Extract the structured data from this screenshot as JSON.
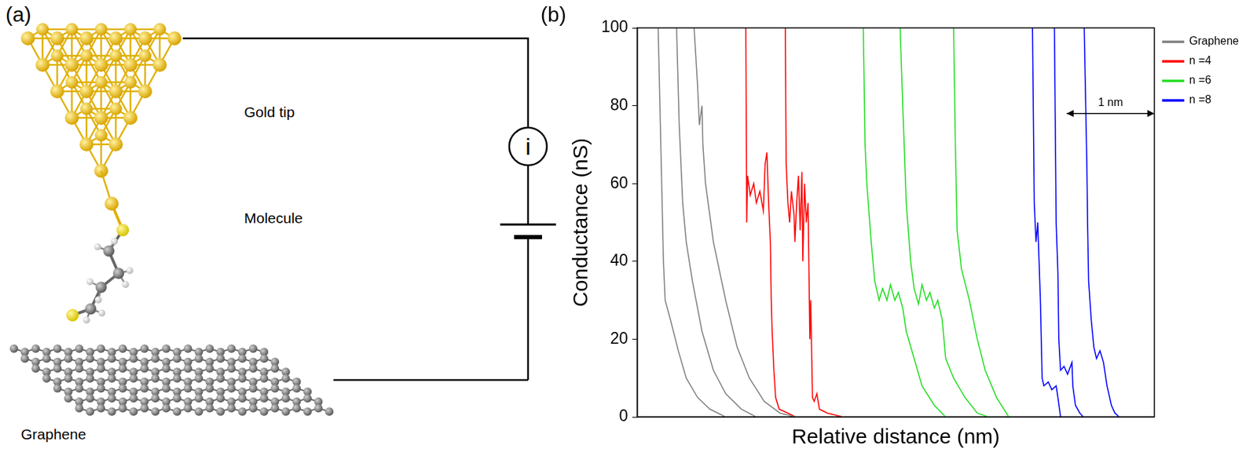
{
  "diagram": {
    "panel_label": "(a)",
    "tip_label": "Gold tip",
    "molecule_label": "Molecule",
    "substrate_label": "Graphene",
    "meter_symbol": "i"
  },
  "chart_data": {
    "panel_label": "(b)",
    "type": "line",
    "x_label": "Relative distance (nm)",
    "y_label": "Conductance (nS)",
    "xlim": [
      0,
      5.9
    ],
    "ylim": [
      0,
      100
    ],
    "yticks": [
      0,
      20,
      40,
      60,
      80,
      100
    ],
    "tick_labels": "y",
    "grid": false,
    "legend": "right",
    "series": [
      {
        "name": "Graphene",
        "color": "#808080",
        "traces": [
          {
            "x": [
              0.24,
              0.27,
              0.3,
              0.32,
              0.38,
              0.47,
              0.56,
              0.69,
              0.83,
              1.01
            ],
            "values": [
              100,
              70,
              40,
              30,
              25,
              17,
              10,
              5,
              2,
              0
            ]
          },
          {
            "x": [
              0.45,
              0.48,
              0.52,
              0.56,
              0.63,
              0.74,
              0.87,
              1.01,
              1.19,
              1.36
            ],
            "values": [
              100,
              75,
              55,
              45,
              35,
              22,
              12,
              6,
              2,
              0
            ]
          },
          {
            "x": [
              0.65,
              0.69,
              0.71,
              0.74,
              0.75,
              0.78,
              0.87,
              1.01,
              1.14,
              1.28,
              1.45,
              1.63,
              1.81
            ],
            "values": [
              100,
              85,
              75,
              80,
              70,
              60,
              45,
              30,
              18,
              10,
              4,
              1,
              0
            ]
          }
        ]
      },
      {
        "name": "n =4",
        "color": "#ff0000",
        "traces": [
          {
            "x": [
              1.24,
              1.25,
              1.26,
              1.29,
              1.33,
              1.36,
              1.4,
              1.44,
              1.46,
              1.48,
              1.5,
              1.52,
              1.53,
              1.54,
              1.56,
              1.58,
              1.62,
              1.72,
              1.81
            ],
            "values": [
              100,
              50,
              62,
              57,
              60,
              55,
              58,
              53,
              65,
              68,
              55,
              45,
              30,
              22,
              12,
              5,
              2,
              1,
              0
            ]
          },
          {
            "x": [
              1.69,
              1.7,
              1.72,
              1.74,
              1.76,
              1.79,
              1.8,
              1.82,
              1.84,
              1.86,
              1.88,
              1.89,
              1.91,
              1.93,
              1.95,
              1.97,
              1.98,
              2.0,
              2.02,
              2.05,
              2.08,
              2.17,
              2.35
            ],
            "values": [
              100,
              65,
              55,
              50,
              58,
              52,
              45,
              55,
              62,
              48,
              63,
              40,
              60,
              50,
              55,
              20,
              30,
              5,
              4,
              6,
              2,
              1,
              0
            ]
          }
        ]
      },
      {
        "name": "n =6",
        "color": "#22dd22",
        "traces": [
          {
            "x": [
              2.58,
              2.6,
              2.62,
              2.67,
              2.71,
              2.76,
              2.8,
              2.85,
              2.89,
              2.94,
              2.98,
              3.03,
              3.07,
              3.16,
              3.25,
              3.39,
              3.52
            ],
            "values": [
              100,
              70,
              60,
              45,
              35,
              30,
              33,
              30,
              34,
              30,
              32,
              28,
              22,
              15,
              8,
              3,
              0
            ]
          },
          {
            "x": [
              3.0,
              3.03,
              3.07,
              3.12,
              3.16,
              3.21,
              3.25,
              3.3,
              3.34,
              3.39,
              3.43,
              3.48,
              3.52,
              3.61,
              3.74,
              3.88,
              4.01
            ],
            "values": [
              100,
              80,
              55,
              40,
              33,
              29,
              34,
              30,
              32,
              28,
              30,
              25,
              15,
              10,
              5,
              1,
              0
            ]
          },
          {
            "x": [
              3.61,
              3.63,
              3.65,
              3.7,
              3.79,
              3.88,
              3.97,
              4.1,
              4.24
            ],
            "values": [
              100,
              70,
              48,
              38,
              30,
              20,
              12,
              5,
              0
            ]
          }
        ]
      },
      {
        "name": "n =8",
        "color": "#0000ff",
        "traces": [
          {
            "x": [
              4.51,
              4.53,
              4.55,
              4.57,
              4.6,
              4.62,
              4.64,
              4.69,
              4.73,
              4.78,
              4.8,
              4.83
            ],
            "values": [
              100,
              55,
              45,
              50,
              30,
              10,
              8,
              9,
              7,
              8,
              5,
              0
            ]
          },
          {
            "x": [
              4.76,
              4.78,
              4.8,
              4.81,
              4.83,
              4.87,
              4.91,
              4.96,
              4.97,
              5.0,
              5.05,
              5.09
            ],
            "values": [
              100,
              50,
              37,
              20,
              12,
              13,
              11,
              14,
              8,
              3,
              1,
              0
            ]
          },
          {
            "x": [
              5.1,
              5.13,
              5.14,
              5.15,
              5.18,
              5.21,
              5.24,
              5.28,
              5.32,
              5.36,
              5.41,
              5.45,
              5.5
            ],
            "values": [
              100,
              65,
              48,
              35,
              25,
              18,
              15,
              17,
              14,
              8,
              3,
              1,
              0
            ]
          }
        ]
      }
    ],
    "annotations": [
      {
        "text": "1 nm",
        "x": [
          4.9,
          5.9
        ],
        "y": 78
      }
    ]
  }
}
